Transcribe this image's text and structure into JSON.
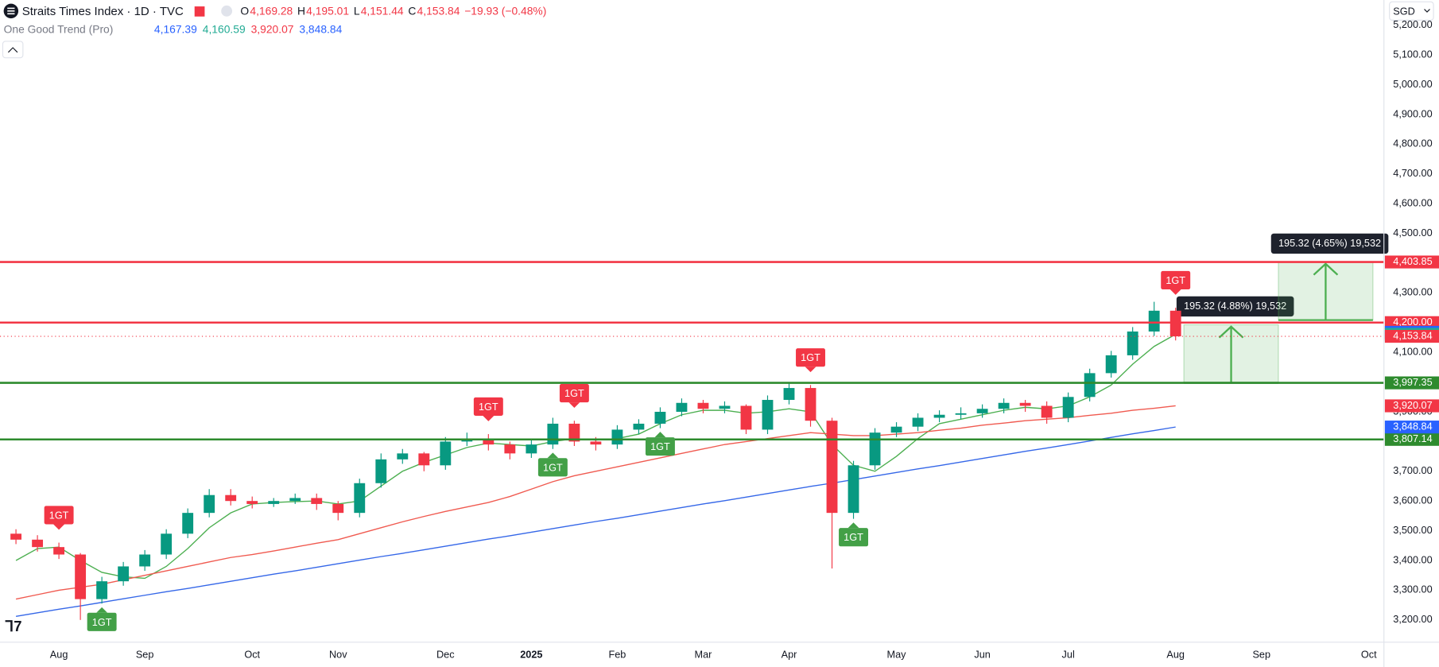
{
  "header": {
    "symbol": "Straits Times Index · 1D · TVC",
    "ohlc": [
      {
        "key": "O",
        "value": "4,169.28"
      },
      {
        "key": "H",
        "value": "4,195.01"
      },
      {
        "key": "L",
        "value": "4,151.44"
      },
      {
        "key": "C",
        "value": "4,153.84"
      }
    ],
    "change": "−19.93 (−0.48%)",
    "indicator": "One Good Trend (Pro)",
    "indicator_values": [
      {
        "text": "4,167.39",
        "color": "#2962ff"
      },
      {
        "text": "4,160.59",
        "color": "#22ab94"
      },
      {
        "text": "3,920.07",
        "color": "#f23645"
      },
      {
        "text": "3,848.84",
        "color": "#2962ff"
      }
    ],
    "currency": "SGD"
  },
  "chart_data": {
    "type": "candlestick",
    "categories": [
      null,
      null,
      "Aug",
      null,
      null,
      null,
      "Sep",
      null,
      null,
      null,
      null,
      "Oct",
      null,
      null,
      null,
      "Nov",
      null,
      null,
      null,
      null,
      "Dec",
      null,
      null,
      null,
      "2025",
      null,
      null,
      null,
      "Feb",
      null,
      null,
      null,
      "Mar",
      null,
      null,
      null,
      "Apr",
      null,
      null,
      null,
      null,
      "May",
      null,
      null,
      null,
      "Jun",
      null,
      null,
      null,
      "Jul",
      null,
      null,
      null,
      null,
      "Aug",
      null,
      null,
      null,
      "Sep",
      null,
      null,
      null,
      null,
      "Oct"
    ],
    "open": [
      3490,
      3470,
      3445,
      3420,
      3270,
      3330,
      3380,
      3420,
      3490,
      3560,
      3620,
      3600,
      3590,
      3600,
      3610,
      3590,
      3560,
      3660,
      3740,
      3760,
      3720,
      3800,
      3810,
      3790,
      3760,
      3790,
      3860,
      3800,
      3790,
      3840,
      3860,
      3900,
      3930,
      3910,
      3920,
      3840,
      3940,
      3980,
      3870,
      3560,
      3720,
      3830,
      3850,
      3880,
      3890,
      3895,
      3910,
      3930,
      3920,
      3880,
      3950,
      4030,
      4090,
      4170,
      4240,
      null,
      null,
      null,
      null,
      null,
      null,
      null,
      null,
      null
    ],
    "high": [
      3505,
      3485,
      3460,
      3425,
      3345,
      3395,
      3435,
      3505,
      3575,
      3640,
      3640,
      3615,
      3610,
      3625,
      3625,
      3600,
      3675,
      3760,
      3775,
      3765,
      3815,
      3830,
      3825,
      3800,
      3805,
      3880,
      3870,
      3815,
      3855,
      3875,
      3915,
      3945,
      3940,
      3935,
      3925,
      3955,
      3995,
      3990,
      3880,
      3735,
      3845,
      3865,
      3895,
      3905,
      3915,
      3925,
      3945,
      3940,
      3935,
      3965,
      4045,
      4105,
      4185,
      4270,
      4250,
      null,
      null,
      null,
      null,
      null,
      null,
      null,
      null,
      null
    ],
    "low": [
      3455,
      3430,
      3405,
      3200,
      3255,
      3315,
      3365,
      3405,
      3475,
      3545,
      3585,
      3575,
      3580,
      3590,
      3570,
      3535,
      3545,
      3645,
      3725,
      3700,
      3705,
      3785,
      3770,
      3740,
      3745,
      3775,
      3785,
      3770,
      3775,
      3825,
      3845,
      3885,
      3895,
      3895,
      3825,
      3825,
      3925,
      3850,
      3373,
      3540,
      3705,
      3815,
      3835,
      3865,
      3875,
      3880,
      3895,
      3900,
      3860,
      3865,
      3935,
      4015,
      4075,
      4155,
      4140,
      null,
      null,
      null,
      null,
      null,
      null,
      null,
      null,
      null
    ],
    "close": [
      3470,
      3445,
      3420,
      3270,
      3330,
      3380,
      3420,
      3490,
      3560,
      3620,
      3600,
      3590,
      3600,
      3610,
      3590,
      3560,
      3660,
      3740,
      3760,
      3720,
      3800,
      3810,
      3790,
      3760,
      3790,
      3860,
      3800,
      3790,
      3840,
      3860,
      3900,
      3930,
      3910,
      3920,
      3840,
      3940,
      3980,
      3870,
      3560,
      3720,
      3830,
      3850,
      3880,
      3890,
      3895,
      3910,
      3930,
      3920,
      3880,
      3950,
      4030,
      4090,
      4170,
      4240,
      4153.84,
      null,
      null,
      null,
      null,
      null,
      null,
      null,
      null,
      null
    ],
    "up_color": "#089981",
    "down_color": "#f23645",
    "series": [
      {
        "color": "#4caf50",
        "values": [
          3400,
          3440,
          3445,
          3400,
          3360,
          3345,
          3340,
          3380,
          3440,
          3510,
          3560,
          3590,
          3595,
          3598,
          3600,
          3590,
          3600,
          3650,
          3700,
          3730,
          3755,
          3780,
          3795,
          3790,
          3785,
          3800,
          3810,
          3805,
          3810,
          3825,
          3860,
          3890,
          3905,
          3905,
          3895,
          3900,
          3910,
          3900,
          3790,
          3720,
          3700,
          3750,
          3810,
          3860,
          3875,
          3890,
          3905,
          3915,
          3910,
          3920,
          3950,
          3990,
          4060,
          4120,
          4160.59,
          null,
          null,
          null,
          null,
          null,
          null,
          null,
          null,
          null
        ]
      },
      {
        "color": "#f05a50",
        "values": [
          3270,
          3285,
          3300,
          3310,
          3320,
          3335,
          3350,
          3365,
          3380,
          3395,
          3410,
          3420,
          3432,
          3445,
          3458,
          3470,
          3490,
          3510,
          3530,
          3548,
          3565,
          3580,
          3595,
          3615,
          3640,
          3665,
          3685,
          3700,
          3715,
          3730,
          3745,
          3760,
          3775,
          3790,
          3800,
          3810,
          3820,
          3830,
          3825,
          3820,
          3820,
          3825,
          3830,
          3838,
          3845,
          3855,
          3862,
          3870,
          3875,
          3880,
          3888,
          3895,
          3905,
          3912,
          3920.07,
          null,
          null,
          null,
          null,
          null,
          null,
          null,
          null,
          null
        ]
      },
      {
        "color": "#3567e8",
        "values": [
          3212,
          3224,
          3236,
          3247,
          3259,
          3271,
          3283,
          3295,
          3306,
          3318,
          3330,
          3342,
          3354,
          3365,
          3377,
          3389,
          3401,
          3413,
          3424,
          3436,
          3448,
          3460,
          3472,
          3483,
          3495,
          3507,
          3519,
          3531,
          3542,
          3554,
          3566,
          3578,
          3590,
          3601,
          3613,
          3625,
          3637,
          3649,
          3660,
          3672,
          3684,
          3696,
          3708,
          3719,
          3731,
          3743,
          3755,
          3767,
          3778,
          3790,
          3802,
          3814,
          3826,
          3837,
          3848.84,
          null,
          null,
          null,
          null,
          null,
          null,
          null,
          null,
          null
        ]
      }
    ],
    "ylim": [
      3125,
      5285
    ],
    "yticks": [
      {
        "value": 3200,
        "label": "3,200.00"
      },
      {
        "value": 3300,
        "label": "3,300.00"
      },
      {
        "value": 3400,
        "label": "3,400.00"
      },
      {
        "value": 3500,
        "label": "3,500.00"
      },
      {
        "value": 3600,
        "label": "3,600.00"
      },
      {
        "value": 3700,
        "label": "3,700.00"
      },
      {
        "value": 3800,
        "label": "3,800.00"
      },
      {
        "value": 3900,
        "label": "3,900.00"
      },
      {
        "value": 4000,
        "label": "4,000.00"
      },
      {
        "value": 4100,
        "label": "4,100.00"
      },
      {
        "value": 4200,
        "label": "4,200.00"
      },
      {
        "value": 4300,
        "label": "4,300.00"
      },
      {
        "value": 4400,
        "label": "4,400.00"
      },
      {
        "value": 4500,
        "label": "4,500.00"
      },
      {
        "value": 4600,
        "label": "4,600.00"
      },
      {
        "value": 4700,
        "label": "4,700.00"
      },
      {
        "value": 4800,
        "label": "4,800.00"
      },
      {
        "value": 4900,
        "label": "4,900.00"
      },
      {
        "value": 5000,
        "label": "5,000.00"
      },
      {
        "value": 5100,
        "label": "5,100.00"
      },
      {
        "value": 5200,
        "label": "5,200.00"
      }
    ],
    "grid": true,
    "levels": [
      {
        "value": 4403.85,
        "label": "4,403.85",
        "color": "#f23645"
      },
      {
        "value": 4200,
        "label": "4,200.00",
        "color": "#f23645"
      },
      {
        "value": 3997.35,
        "label": "3,997.35",
        "color": "#2e8b2e"
      },
      {
        "value": 3807.14,
        "label": "3,807.14",
        "color": "#2e8b2e"
      }
    ],
    "badges": [
      {
        "value": 4167.39,
        "label": "4,167.39",
        "color": "#2962ff"
      },
      {
        "value": 4160.59,
        "label": "4,160.59",
        "color": "#22ab94"
      },
      {
        "value": 4153.84,
        "label": "4,153.84",
        "color": "#f23645"
      },
      {
        "value": 3920.07,
        "label": "3,920.07",
        "color": "#f23645"
      },
      {
        "value": 3848.84,
        "label": "3,848.84",
        "color": "#2962ff"
      }
    ],
    "signals": [
      {
        "label": "1GT",
        "index": 2,
        "side": "sell"
      },
      {
        "label": "1GT",
        "index": 22,
        "side": "sell"
      },
      {
        "label": "1GT",
        "index": 26,
        "side": "sell"
      },
      {
        "label": "1GT",
        "index": 37,
        "side": "sell"
      },
      {
        "label": "1GT",
        "index": 54,
        "side": "sell"
      },
      {
        "label": "1GT",
        "index": 4,
        "side": "buy"
      },
      {
        "label": "1GT",
        "index": 25,
        "side": "buy"
      },
      {
        "label": "1GT",
        "index": 30,
        "side": "buy"
      },
      {
        "label": "1GT",
        "index": 39,
        "side": "buy"
      }
    ],
    "positions": [
      {
        "label": "195.32 (4.88%) 19,532",
        "entry": 3997.35,
        "target": 4192.67
      },
      {
        "label": "195.32 (4.65%) 19,532",
        "entry": 4208.53,
        "target": 4403.85
      }
    ]
  }
}
